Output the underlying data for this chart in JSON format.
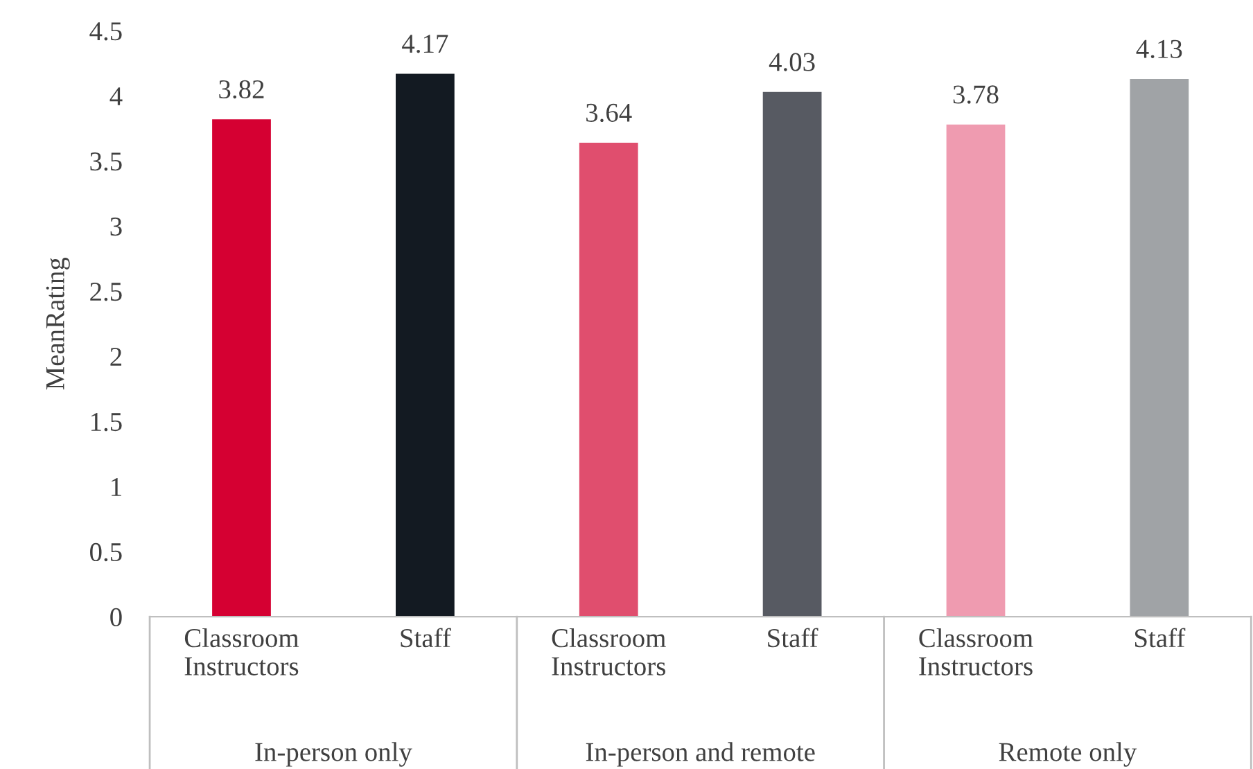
{
  "chart_data": {
    "type": "bar",
    "ylabel": "MeanRating",
    "categories": [
      "Classroom Instructors",
      "Staff",
      "Classroom Instructors",
      "Staff",
      "Classroom Instructors",
      "Staff"
    ],
    "values": [
      3.82,
      4.17,
      3.64,
      4.03,
      3.78,
      4.13
    ],
    "colors": [
      "#d50032",
      "#131a22",
      "#e04e6e",
      "#575a62",
      "#ef9bb0",
      "#a0a3a6"
    ],
    "ylim": [
      0,
      4.5
    ],
    "yticks": [
      0,
      0.5,
      1,
      1.5,
      2,
      2.5,
      3,
      3.5,
      4,
      4.5
    ],
    "data_labels": true,
    "grid": false,
    "legend": false,
    "annotations": [
      "In-person only",
      "In-person and remote",
      "Remote only"
    ]
  }
}
